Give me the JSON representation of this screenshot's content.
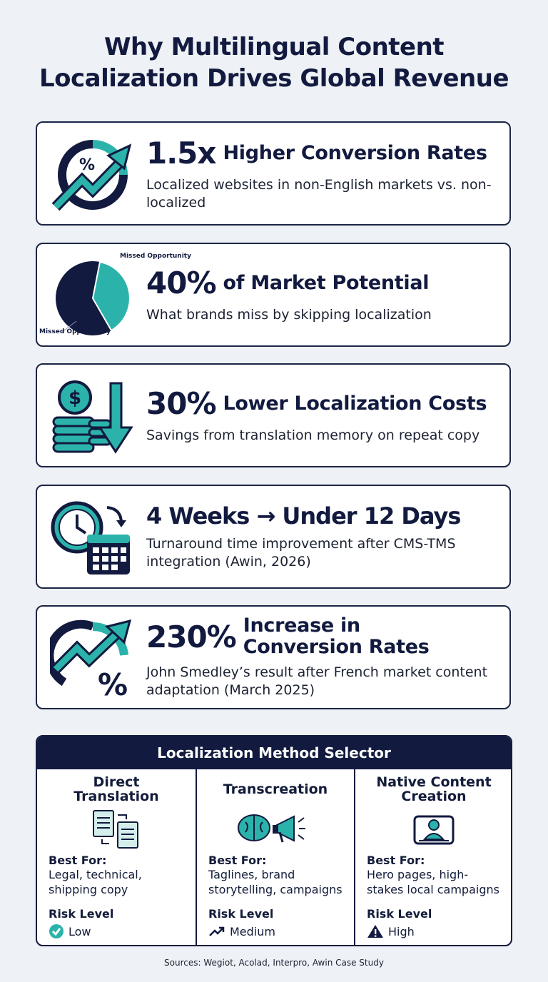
{
  "title_lines": [
    "Why Multilingual Content",
    "Localization Drives Global Revenue"
  ],
  "stats": [
    {
      "highlight": "1.5x",
      "headline": "Higher Conversion Rates",
      "description": "Localized websites in non-English markets vs. non-localized"
    },
    {
      "highlight": "40%",
      "headline": "of Market Potential",
      "description": "What brands miss by skipping localization",
      "pie_labels": [
        "Missed Opportunity",
        "Missed Opportunity"
      ]
    },
    {
      "highlight": "30%",
      "headline": "Lower Localization Costs",
      "description": "Savings from translation memory on repeat copy"
    },
    {
      "highlight": "4 Weeks → Under 12 Days",
      "description": "Turnaround time improvement after CMS-TMS integration (Awin, 2026)"
    },
    {
      "highlight": "230%",
      "headline": "Increase in Conversion Rates",
      "description": "John Smedley’s result after French market content adaptation (March 2025)"
    }
  ],
  "selector": {
    "title": "Localization Method Selector",
    "columns": [
      {
        "name": "Direct Translation",
        "best_for_label": "Best For:",
        "best_for": "Legal, technical, shipping copy",
        "risk_label": "Risk Level",
        "risk": "Low"
      },
      {
        "name": "Transcreation",
        "best_for_label": "Best For:",
        "best_for": "Taglines, brand storytelling, campaigns",
        "risk_label": "Risk Level",
        "risk": "Medium"
      },
      {
        "name": "Native Content Creation",
        "best_for_label": "Best For:",
        "best_for": "Hero pages, high-stakes local campaigns",
        "risk_label": "Risk Level",
        "risk": "High"
      }
    ]
  },
  "sources": "Sources: Wegiot, Acolad, Interpro, Awin Case Study"
}
